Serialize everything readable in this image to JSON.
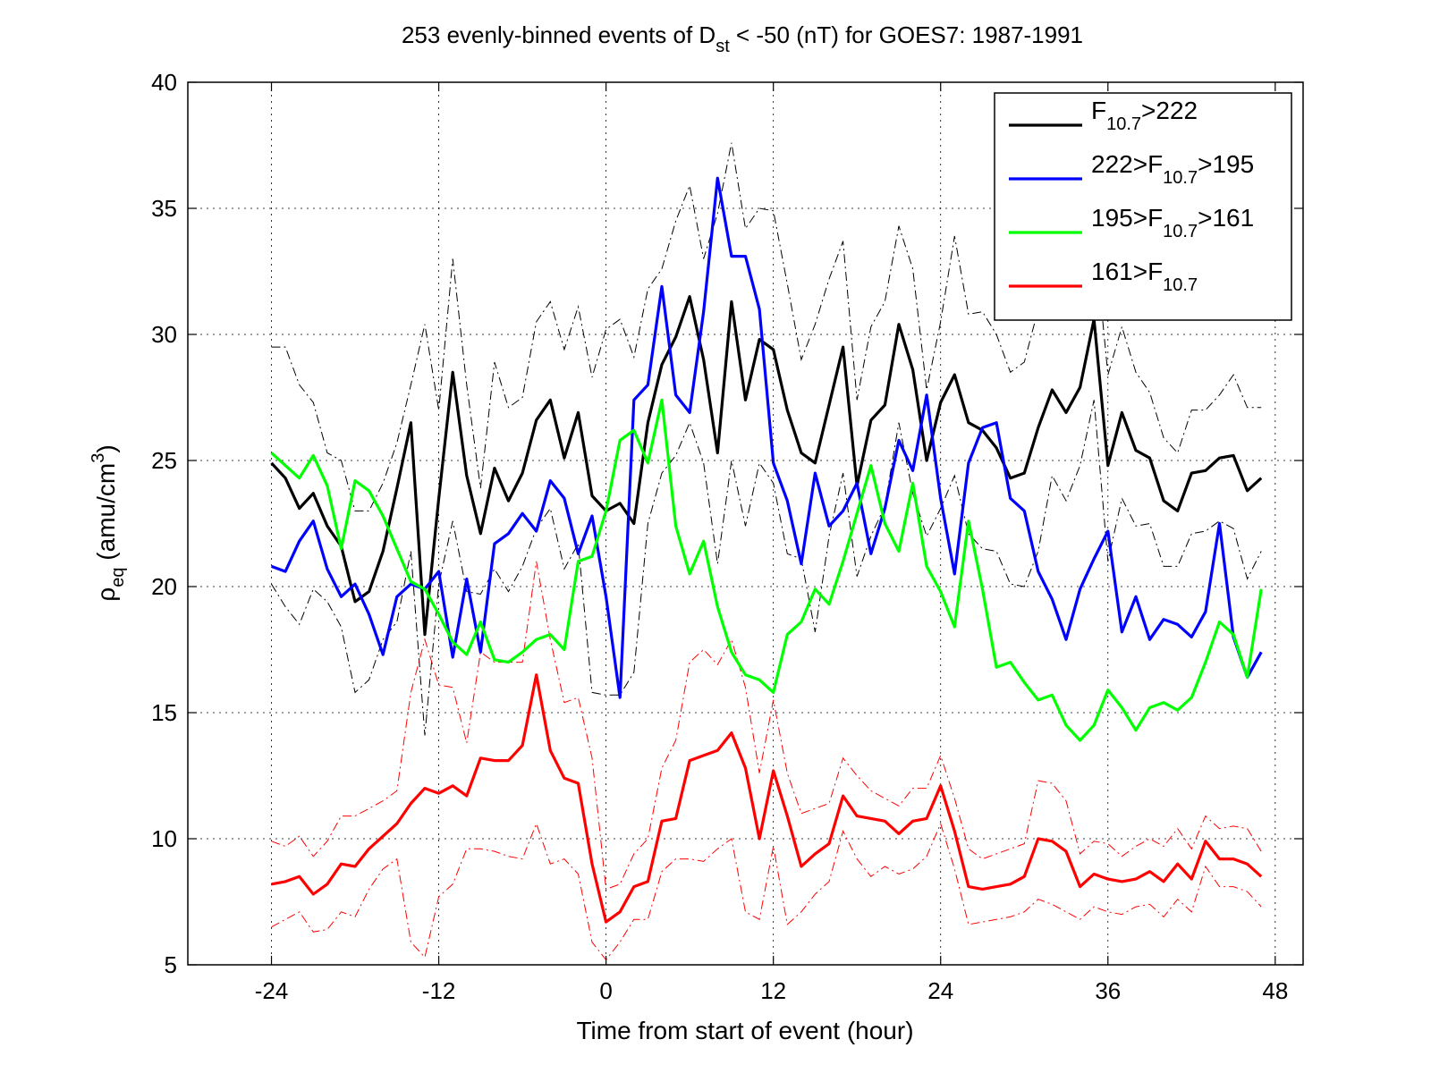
{
  "chart_data": {
    "type": "line",
    "title": {
      "pre": "253 evenly-binned events of D",
      "sub": "st",
      "post": " < -50 (nT) for GOES7: 1987-1991"
    },
    "xlabel": "Time from start of event (hour)",
    "ylabel": {
      "main": "ρ",
      "sub": "eq",
      "unit_pre": " (amu/cm",
      "unit_sup": "3",
      "unit_post": ")"
    },
    "xlim": [
      -30,
      50
    ],
    "ylim": [
      5,
      40
    ],
    "xticks": [
      -24,
      -12,
      0,
      12,
      24,
      36,
      48
    ],
    "yticks": [
      5,
      10,
      15,
      20,
      25,
      30,
      35,
      40
    ],
    "xtick_labels": [
      "-24",
      "-12",
      "0",
      "12",
      "24",
      "36",
      "48"
    ],
    "ytick_labels": [
      "5",
      "10",
      "15",
      "20",
      "25",
      "30",
      "35",
      "40"
    ],
    "grid": true,
    "legend_position": "top-right",
    "x": [
      -24,
      -23,
      -22,
      -21,
      -20,
      -19,
      -18,
      -17,
      -16,
      -15,
      -14,
      -13,
      -12,
      -11,
      -10,
      -9,
      -8,
      -7,
      -6,
      -5,
      -4,
      -3,
      -2,
      -1,
      0,
      1,
      2,
      3,
      4,
      5,
      6,
      7,
      8,
      9,
      10,
      11,
      12,
      13,
      14,
      15,
      16,
      17,
      18,
      19,
      20,
      21,
      22,
      23,
      24,
      25,
      26,
      27,
      28,
      29,
      30,
      31,
      32,
      33,
      34,
      35,
      36,
      37,
      38,
      39,
      40,
      41,
      42,
      43,
      44,
      45,
      46,
      47
    ],
    "series": [
      {
        "legend": {
          "pre": "F",
          "sub": "10.7",
          "post": ">222"
        },
        "color": "#000000",
        "values": [
          24.9,
          24.3,
          23.1,
          23.7,
          22.4,
          21.6,
          19.4,
          19.8,
          21.4,
          23.9,
          26.5,
          18.1,
          23.5,
          28.5,
          24.4,
          22.1,
          24.7,
          23.4,
          24.5,
          26.6,
          27.4,
          25.1,
          26.9,
          23.6,
          23.0,
          23.3,
          22.5,
          26.5,
          28.8,
          29.9,
          31.5,
          29.0,
          25.3,
          31.3,
          27.4,
          29.8,
          29.4,
          27.0,
          25.3,
          24.9,
          27.2,
          29.5,
          24.0,
          26.6,
          27.2,
          30.4,
          28.6,
          25.0,
          27.3,
          28.4,
          26.5,
          26.2,
          25.5,
          24.3,
          24.5,
          26.3,
          27.8,
          26.9,
          27.9,
          30.6,
          24.8,
          26.9,
          25.4,
          25.1,
          23.4,
          23.0,
          24.5,
          24.6,
          25.1,
          25.2,
          23.8,
          24.3
        ]
      },
      {
        "legend": {
          "pre": "222>F",
          "sub": "10.7",
          "post": ">195"
        },
        "color": "#0000ff",
        "values": [
          20.8,
          20.6,
          21.8,
          22.6,
          20.7,
          19.6,
          20.1,
          18.9,
          17.3,
          19.6,
          20.1,
          19.9,
          20.6,
          17.2,
          20.3,
          17.4,
          21.7,
          22.1,
          22.9,
          22.2,
          24.2,
          23.5,
          21.3,
          22.8,
          19.6,
          15.6,
          27.4,
          28.0,
          31.9,
          27.6,
          26.9,
          30.9,
          36.2,
          33.1,
          33.1,
          31.0,
          24.9,
          23.4,
          20.9,
          24.5,
          22.4,
          23.0,
          24.1,
          21.3,
          23.1,
          25.8,
          24.6,
          27.6,
          23.5,
          20.5,
          24.9,
          26.3,
          26.5,
          23.5,
          23.0,
          20.6,
          19.5,
          17.9,
          19.9,
          21.1,
          22.2,
          18.2,
          19.6,
          17.9,
          18.7,
          18.5,
          18.0,
          19.0,
          22.5,
          18.0,
          16.4,
          17.4
        ]
      },
      {
        "legend": {
          "pre": "195>F",
          "sub": "10.7",
          "post": ">161"
        },
        "color": "#00ff00",
        "values": [
          25.3,
          24.8,
          24.3,
          25.2,
          24.0,
          21.5,
          24.2,
          23.8,
          22.8,
          21.5,
          20.2,
          19.9,
          18.9,
          17.8,
          17.3,
          18.6,
          17.1,
          17.0,
          17.4,
          17.9,
          18.1,
          17.5,
          21.0,
          21.2,
          23.0,
          25.8,
          26.2,
          24.9,
          27.4,
          22.4,
          20.5,
          21.8,
          19.2,
          17.4,
          16.5,
          16.3,
          15.8,
          18.1,
          18.6,
          19.9,
          19.3,
          21.0,
          22.9,
          24.8,
          22.5,
          21.4,
          24.1,
          20.8,
          19.8,
          18.4,
          22.6,
          19.9,
          16.8,
          17.0,
          16.2,
          15.5,
          15.7,
          14.5,
          13.9,
          14.5,
          15.9,
          15.2,
          14.3,
          15.2,
          15.4,
          15.1,
          15.6,
          17.0,
          18.6,
          18.1,
          16.4,
          19.9
        ]
      },
      {
        "legend": {
          "pre": "161>F",
          "sub": "10.7",
          "post": ""
        },
        "color": "#ff0000",
        "values": [
          8.2,
          8.3,
          8.5,
          7.8,
          8.2,
          9.0,
          8.9,
          9.6,
          10.1,
          10.6,
          11.4,
          12.0,
          11.8,
          12.1,
          11.7,
          13.2,
          13.1,
          13.1,
          13.7,
          16.5,
          13.5,
          12.4,
          12.2,
          9.0,
          6.7,
          7.1,
          8.1,
          8.3,
          10.7,
          10.8,
          13.1,
          13.3,
          13.5,
          14.2,
          12.8,
          10.0,
          12.7,
          10.9,
          8.9,
          9.4,
          9.8,
          11.7,
          10.9,
          10.8,
          10.7,
          10.2,
          10.7,
          10.8,
          12.1,
          10.3,
          8.1,
          8.0,
          8.1,
          8.2,
          8.5,
          10.0,
          9.9,
          9.5,
          8.1,
          8.6,
          8.4,
          8.3,
          8.4,
          8.7,
          8.3,
          9.0,
          8.4,
          9.9,
          9.2,
          9.2,
          9.0,
          8.5
        ]
      }
    ],
    "envelopes": [
      {
        "color": "#000000",
        "upper": [
          29.5,
          29.5,
          28.0,
          27.3,
          25.3,
          25.0,
          23.0,
          23.0,
          24.1,
          25.7,
          28.0,
          30.4,
          27.0,
          33.0,
          28.0,
          23.9,
          28.9,
          27.1,
          27.5,
          30.5,
          31.3,
          29.4,
          31.1,
          28.3,
          30.2,
          30.6,
          29.1,
          31.8,
          32.6,
          34.5,
          35.9,
          33.0,
          34.8,
          37.6,
          34.2,
          35.0,
          34.9,
          32.0,
          29.0,
          30.4,
          32.2,
          33.7,
          27.4,
          30.3,
          31.3,
          34.3,
          32.6,
          27.8,
          30.5,
          33.9,
          30.8,
          30.9,
          30.0,
          28.5,
          28.9,
          31.0,
          32.7,
          31.8,
          33.0,
          34.1,
          28.4,
          30.3,
          28.5,
          27.7,
          25.9,
          25.3,
          27.0,
          27.0,
          27.6,
          28.4,
          27.1,
          27.1
        ],
        "lower": [
          20.1,
          19.2,
          18.5,
          19.9,
          19.4,
          18.4,
          15.8,
          16.3,
          17.9,
          18.6,
          21.4,
          14.1,
          20.1,
          22.6,
          19.8,
          19.7,
          20.7,
          19.8,
          20.8,
          22.3,
          23.1,
          20.7,
          21.7,
          15.8,
          15.7,
          15.7,
          16.6,
          22.5,
          24.5,
          25.2,
          26.5,
          24.9,
          20.9,
          25.0,
          22.4,
          24.9,
          24.1,
          21.3,
          21.1,
          18.2,
          22.0,
          24.5,
          20.4,
          22.0,
          23.2,
          26.5,
          23.7,
          22.0,
          23.1,
          24.4,
          22.1,
          21.5,
          21.4,
          20.1,
          20.0,
          21.4,
          24.4,
          23.4,
          24.8,
          27.4,
          21.0,
          23.5,
          22.4,
          22.5,
          20.8,
          20.8,
          22.1,
          22.2,
          22.6,
          22.3,
          20.3,
          21.4
        ]
      },
      {
        "color": "#ff0000",
        "upper": [
          9.9,
          9.7,
          10.1,
          9.3,
          9.9,
          10.9,
          10.9,
          11.2,
          11.5,
          11.9,
          15.8,
          17.9,
          16.1,
          16.0,
          13.8,
          17.4,
          17.0,
          17.0,
          17.0,
          21.0,
          17.9,
          15.4,
          15.6,
          13.2,
          8.0,
          8.2,
          9.4,
          10.0,
          12.8,
          13.9,
          17.0,
          17.5,
          16.9,
          17.9,
          16.0,
          12.6,
          15.5,
          12.6,
          11.0,
          11.2,
          11.4,
          13.2,
          12.5,
          11.9,
          11.6,
          11.3,
          12.0,
          12.0,
          13.3,
          11.6,
          9.6,
          9.2,
          9.4,
          9.6,
          9.8,
          12.3,
          12.2,
          11.5,
          9.4,
          9.9,
          9.8,
          9.3,
          9.7,
          10.0,
          9.7,
          10.4,
          9.6,
          10.9,
          10.4,
          10.5,
          10.4,
          9.5
        ],
        "lower": [
          6.5,
          6.8,
          7.1,
          6.3,
          6.4,
          7.1,
          6.9,
          8.0,
          8.8,
          9.2,
          5.9,
          5.3,
          7.7,
          8.2,
          9.6,
          9.6,
          9.5,
          9.3,
          9.2,
          10.6,
          9.0,
          9.2,
          8.6,
          5.9,
          5.2,
          5.9,
          6.8,
          6.8,
          8.7,
          9.2,
          9.2,
          9.1,
          9.6,
          10.0,
          7.1,
          6.8,
          9.7,
          6.6,
          7.1,
          7.8,
          8.3,
          10.3,
          9.2,
          8.5,
          8.9,
          8.6,
          8.8,
          9.3,
          10.6,
          8.8,
          6.6,
          6.7,
          6.8,
          6.9,
          7.1,
          7.6,
          7.4,
          7.1,
          6.8,
          7.3,
          7.1,
          7.0,
          7.3,
          7.4,
          6.9,
          7.6,
          7.1,
          8.9,
          8.1,
          8.1,
          7.9,
          7.3
        ]
      }
    ]
  }
}
